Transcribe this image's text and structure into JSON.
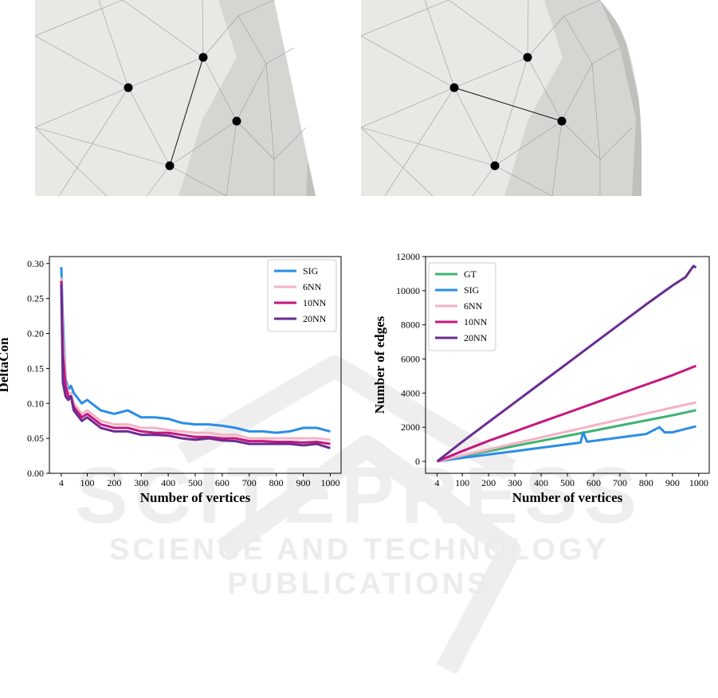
{
  "figures": {
    "left_panel": {
      "description": "",
      "edges": "crossing-edge"
    },
    "right_panel": {
      "description": "",
      "edges": "star-edge"
    }
  },
  "watermark": {
    "line1": "SCITEPRESS",
    "line2": "SCIENCE AND TECHNOLOGY PUBLICATIONS"
  },
  "chart_data": [
    {
      "type": "line",
      "xlabel": "Number of vertices",
      "ylabel": "DeltaCon",
      "x_ticks": [
        "4",
        "100",
        "200",
        "300",
        "400",
        "500",
        "600",
        "700",
        "800",
        "900",
        "1000"
      ],
      "y_ticks": [
        "0.00",
        "0.05",
        "0.10",
        "0.15",
        "0.20",
        "0.25",
        "0.30"
      ],
      "xlim": [
        -40,
        1040
      ],
      "ylim": [
        0,
        0.31
      ],
      "legend_position": "top-right",
      "series": [
        {
          "name": "SIG",
          "color": "#2a8de8",
          "x": [
            4,
            10,
            20,
            30,
            40,
            50,
            60,
            80,
            100,
            150,
            200,
            250,
            300,
            350,
            400,
            450,
            500,
            550,
            600,
            650,
            700,
            750,
            800,
            850,
            900,
            950,
            1000
          ],
          "y": [
            0.295,
            0.22,
            0.135,
            0.12,
            0.125,
            0.115,
            0.11,
            0.1,
            0.105,
            0.09,
            0.085,
            0.09,
            0.08,
            0.08,
            0.078,
            0.072,
            0.07,
            0.07,
            0.068,
            0.065,
            0.06,
            0.06,
            0.058,
            0.06,
            0.065,
            0.065,
            0.06
          ]
        },
        {
          "name": "6NN",
          "color": "#f4b3c4",
          "x": [
            4,
            10,
            20,
            30,
            40,
            50,
            60,
            80,
            100,
            150,
            200,
            250,
            300,
            350,
            400,
            450,
            500,
            550,
            600,
            650,
            700,
            750,
            800,
            850,
            900,
            950,
            1000
          ],
          "y": [
            0.28,
            0.2,
            0.13,
            0.115,
            0.115,
            0.1,
            0.095,
            0.085,
            0.09,
            0.075,
            0.07,
            0.07,
            0.065,
            0.065,
            0.062,
            0.06,
            0.058,
            0.058,
            0.055,
            0.055,
            0.05,
            0.05,
            0.05,
            0.05,
            0.05,
            0.05,
            0.048
          ]
        },
        {
          "name": "10NN",
          "color": "#c5177f",
          "x": [
            4,
            10,
            20,
            30,
            40,
            50,
            60,
            80,
            100,
            150,
            200,
            250,
            300,
            350,
            400,
            450,
            500,
            550,
            600,
            650,
            700,
            750,
            800,
            850,
            900,
            950,
            1000
          ],
          "y": [
            0.275,
            0.17,
            0.125,
            0.11,
            0.11,
            0.095,
            0.09,
            0.08,
            0.085,
            0.07,
            0.065,
            0.065,
            0.06,
            0.058,
            0.058,
            0.055,
            0.052,
            0.052,
            0.05,
            0.05,
            0.046,
            0.046,
            0.045,
            0.045,
            0.044,
            0.045,
            0.042
          ]
        },
        {
          "name": "20NN",
          "color": "#6a2c91",
          "x": [
            4,
            10,
            20,
            30,
            40,
            50,
            60,
            80,
            100,
            150,
            200,
            250,
            300,
            350,
            400,
            450,
            500,
            550,
            600,
            650,
            700,
            750,
            800,
            850,
            900,
            950,
            1000
          ],
          "y": [
            0.27,
            0.13,
            0.11,
            0.105,
            0.11,
            0.09,
            0.085,
            0.075,
            0.08,
            0.065,
            0.06,
            0.06,
            0.055,
            0.055,
            0.054,
            0.05,
            0.048,
            0.05,
            0.047,
            0.046,
            0.042,
            0.042,
            0.042,
            0.042,
            0.04,
            0.042,
            0.036
          ]
        }
      ]
    },
    {
      "type": "line",
      "xlabel": "Number of vertices",
      "ylabel": "Number of edges",
      "x_ticks": [
        "4",
        "100",
        "200",
        "300",
        "400",
        "500",
        "600",
        "700",
        "800",
        "900",
        "1000"
      ],
      "y_ticks": [
        "0",
        "2000",
        "4000",
        "6000",
        "8000",
        "10000",
        "12000"
      ],
      "xlim": [
        -40,
        1040
      ],
      "ylim": [
        -700,
        12000
      ],
      "legend_position": "top-left",
      "series": [
        {
          "name": "GT",
          "color": "#3cb371",
          "x": [
            4,
            100,
            200,
            300,
            400,
            500,
            600,
            700,
            800,
            900,
            990
          ],
          "y": [
            0,
            300,
            600,
            900,
            1200,
            1500,
            1800,
            2100,
            2400,
            2700,
            3000
          ]
        },
        {
          "name": "SIG",
          "color": "#2a8de8",
          "x": [
            4,
            100,
            200,
            300,
            400,
            500,
            550,
            560,
            575,
            600,
            700,
            800,
            850,
            870,
            900,
            950,
            990
          ],
          "y": [
            0,
            200,
            400,
            600,
            800,
            1000,
            1100,
            1700,
            1150,
            1200,
            1400,
            1600,
            2000,
            1700,
            1700,
            1900,
            2050
          ]
        },
        {
          "name": "6NN",
          "color": "#f4b3c4",
          "x": [
            4,
            100,
            200,
            300,
            400,
            500,
            600,
            700,
            800,
            900,
            990
          ],
          "y": [
            0,
            350,
            700,
            1050,
            1400,
            1750,
            2100,
            2450,
            2800,
            3150,
            3450
          ]
        },
        {
          "name": "10NN",
          "color": "#c5177f",
          "x": [
            4,
            100,
            200,
            300,
            400,
            500,
            600,
            700,
            800,
            900,
            990
          ],
          "y": [
            0,
            600,
            1200,
            1750,
            2300,
            2850,
            3400,
            3950,
            4500,
            5050,
            5600
          ]
        },
        {
          "name": "20NN",
          "color": "#6a2c91",
          "x": [
            4,
            100,
            200,
            300,
            400,
            500,
            600,
            700,
            800,
            900,
            950,
            980,
            990
          ],
          "y": [
            0,
            1150,
            2300,
            3450,
            4600,
            5750,
            6900,
            8050,
            9200,
            10300,
            10800,
            11450,
            11350
          ]
        }
      ]
    }
  ]
}
